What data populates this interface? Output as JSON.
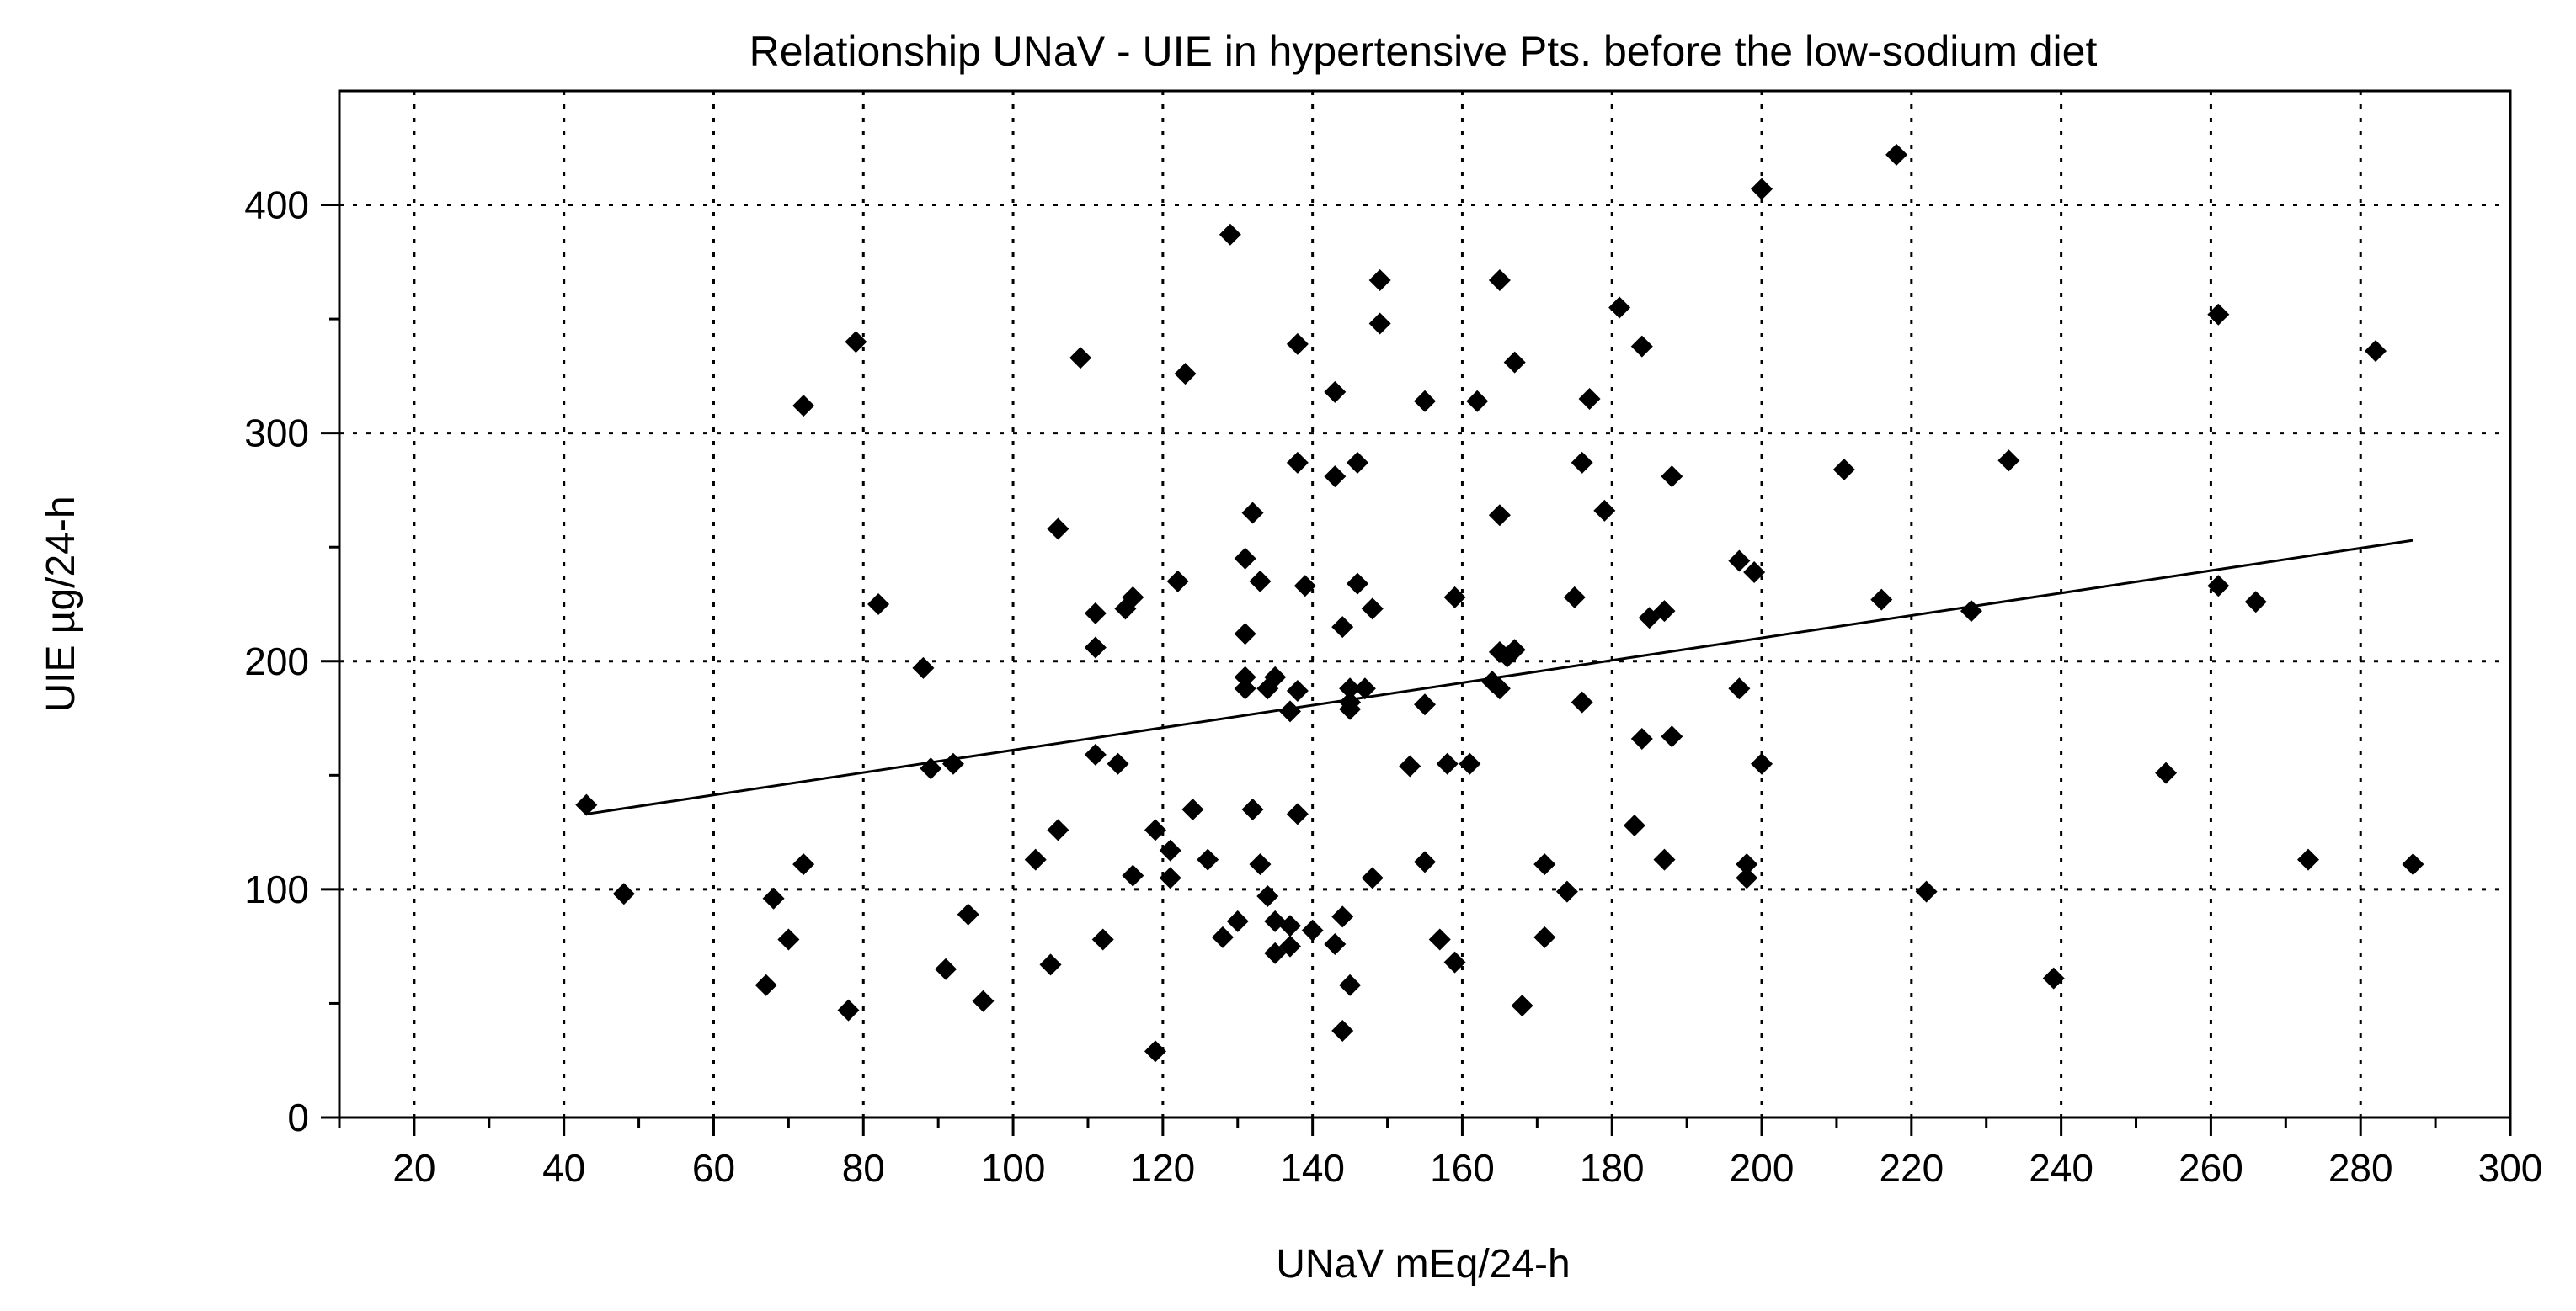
{
  "chart_data": {
    "type": "scatter",
    "title": "Relationship UNaV - UIE in hypertensive Pts. before the low-sodium diet",
    "xlabel": "UNaV mEq/24-h",
    "ylabel": "UIE µg/24-h",
    "xlim": [
      10,
      300
    ],
    "ylim": [
      0,
      450
    ],
    "x_ticks": [
      20,
      40,
      60,
      80,
      100,
      120,
      140,
      160,
      180,
      200,
      220,
      240,
      260,
      280,
      300
    ],
    "x_tick_labels": [
      "20",
      "40",
      "60",
      "80",
      "100",
      "120",
      "140",
      "160",
      "180",
      "200",
      "220",
      "240",
      "260",
      "280",
      "300"
    ],
    "y_ticks": [
      0,
      100,
      200,
      300,
      400
    ],
    "y_tick_labels": [
      "0",
      "100",
      "200",
      "300",
      "400"
    ],
    "grid": true,
    "marker": "diamond",
    "marker_color": "#000000",
    "trendline": {
      "x": [
        43,
        287
      ],
      "y": [
        133,
        253
      ]
    },
    "points": [
      {
        "x": 43,
        "y": 137
      },
      {
        "x": 48,
        "y": 98
      },
      {
        "x": 67,
        "y": 58
      },
      {
        "x": 68,
        "y": 96
      },
      {
        "x": 70,
        "y": 78
      },
      {
        "x": 72,
        "y": 111
      },
      {
        "x": 72,
        "y": 312
      },
      {
        "x": 78,
        "y": 47
      },
      {
        "x": 79,
        "y": 340
      },
      {
        "x": 82,
        "y": 225
      },
      {
        "x": 88,
        "y": 197
      },
      {
        "x": 89,
        "y": 153
      },
      {
        "x": 91,
        "y": 65
      },
      {
        "x": 92,
        "y": 155
      },
      {
        "x": 94,
        "y": 89
      },
      {
        "x": 96,
        "y": 51
      },
      {
        "x": 103,
        "y": 113
      },
      {
        "x": 105,
        "y": 67
      },
      {
        "x": 106,
        "y": 258
      },
      {
        "x": 106,
        "y": 126
      },
      {
        "x": 109,
        "y": 333
      },
      {
        "x": 111,
        "y": 221
      },
      {
        "x": 111,
        "y": 206
      },
      {
        "x": 111,
        "y": 159
      },
      {
        "x": 112,
        "y": 78
      },
      {
        "x": 114,
        "y": 155
      },
      {
        "x": 115,
        "y": 223
      },
      {
        "x": 116,
        "y": 228
      },
      {
        "x": 116,
        "y": 106
      },
      {
        "x": 119,
        "y": 126
      },
      {
        "x": 119,
        "y": 29
      },
      {
        "x": 121,
        "y": 117
      },
      {
        "x": 121,
        "y": 105
      },
      {
        "x": 122,
        "y": 235
      },
      {
        "x": 123,
        "y": 326
      },
      {
        "x": 124,
        "y": 135
      },
      {
        "x": 126,
        "y": 113
      },
      {
        "x": 128,
        "y": 79
      },
      {
        "x": 129,
        "y": 387
      },
      {
        "x": 130,
        "y": 86
      },
      {
        "x": 131,
        "y": 245
      },
      {
        "x": 131,
        "y": 212
      },
      {
        "x": 131,
        "y": 193
      },
      {
        "x": 131,
        "y": 188
      },
      {
        "x": 132,
        "y": 265
      },
      {
        "x": 132,
        "y": 135
      },
      {
        "x": 133,
        "y": 235
      },
      {
        "x": 133,
        "y": 111
      },
      {
        "x": 134,
        "y": 97
      },
      {
        "x": 134,
        "y": 188
      },
      {
        "x": 135,
        "y": 193
      },
      {
        "x": 135,
        "y": 86
      },
      {
        "x": 135,
        "y": 72
      },
      {
        "x": 137,
        "y": 178
      },
      {
        "x": 137,
        "y": 84
      },
      {
        "x": 137,
        "y": 75
      },
      {
        "x": 138,
        "y": 339
      },
      {
        "x": 138,
        "y": 287
      },
      {
        "x": 138,
        "y": 187
      },
      {
        "x": 138,
        "y": 133
      },
      {
        "x": 139,
        "y": 233
      },
      {
        "x": 140,
        "y": 82
      },
      {
        "x": 143,
        "y": 318
      },
      {
        "x": 143,
        "y": 281
      },
      {
        "x": 143,
        "y": 76
      },
      {
        "x": 144,
        "y": 215
      },
      {
        "x": 144,
        "y": 88
      },
      {
        "x": 144,
        "y": 38
      },
      {
        "x": 145,
        "y": 188
      },
      {
        "x": 145,
        "y": 182
      },
      {
        "x": 145,
        "y": 179
      },
      {
        "x": 145,
        "y": 58
      },
      {
        "x": 146,
        "y": 287
      },
      {
        "x": 146,
        "y": 234
      },
      {
        "x": 147,
        "y": 188
      },
      {
        "x": 148,
        "y": 223
      },
      {
        "x": 148,
        "y": 105
      },
      {
        "x": 149,
        "y": 367
      },
      {
        "x": 149,
        "y": 348
      },
      {
        "x": 153,
        "y": 154
      },
      {
        "x": 155,
        "y": 314
      },
      {
        "x": 155,
        "y": 181
      },
      {
        "x": 155,
        "y": 112
      },
      {
        "x": 157,
        "y": 78
      },
      {
        "x": 158,
        "y": 155
      },
      {
        "x": 159,
        "y": 228
      },
      {
        "x": 159,
        "y": 68
      },
      {
        "x": 161,
        "y": 155
      },
      {
        "x": 162,
        "y": 314
      },
      {
        "x": 164,
        "y": 191
      },
      {
        "x": 165,
        "y": 367
      },
      {
        "x": 165,
        "y": 264
      },
      {
        "x": 165,
        "y": 204
      },
      {
        "x": 165,
        "y": 188
      },
      {
        "x": 166,
        "y": 202
      },
      {
        "x": 167,
        "y": 331
      },
      {
        "x": 167,
        "y": 205
      },
      {
        "x": 168,
        "y": 49
      },
      {
        "x": 171,
        "y": 111
      },
      {
        "x": 171,
        "y": 79
      },
      {
        "x": 174,
        "y": 99
      },
      {
        "x": 175,
        "y": 228
      },
      {
        "x": 176,
        "y": 287
      },
      {
        "x": 176,
        "y": 182
      },
      {
        "x": 177,
        "y": 315
      },
      {
        "x": 179,
        "y": 266
      },
      {
        "x": 181,
        "y": 355
      },
      {
        "x": 183,
        "y": 128
      },
      {
        "x": 184,
        "y": 338
      },
      {
        "x": 184,
        "y": 166
      },
      {
        "x": 185,
        "y": 219
      },
      {
        "x": 187,
        "y": 222
      },
      {
        "x": 187,
        "y": 113
      },
      {
        "x": 188,
        "y": 281
      },
      {
        "x": 188,
        "y": 167
      },
      {
        "x": 197,
        "y": 244
      },
      {
        "x": 197,
        "y": 188
      },
      {
        "x": 198,
        "y": 111
      },
      {
        "x": 198,
        "y": 105
      },
      {
        "x": 199,
        "y": 239
      },
      {
        "x": 200,
        "y": 407
      },
      {
        "x": 200,
        "y": 155
      },
      {
        "x": 211,
        "y": 284
      },
      {
        "x": 216,
        "y": 227
      },
      {
        "x": 218,
        "y": 422
      },
      {
        "x": 222,
        "y": 99
      },
      {
        "x": 228,
        "y": 222
      },
      {
        "x": 233,
        "y": 288
      },
      {
        "x": 239,
        "y": 61
      },
      {
        "x": 254,
        "y": 151
      },
      {
        "x": 261,
        "y": 352
      },
      {
        "x": 261,
        "y": 233
      },
      {
        "x": 266,
        "y": 226
      },
      {
        "x": 273,
        "y": 113
      },
      {
        "x": 282,
        "y": 336
      },
      {
        "x": 287,
        "y": 111
      }
    ]
  }
}
